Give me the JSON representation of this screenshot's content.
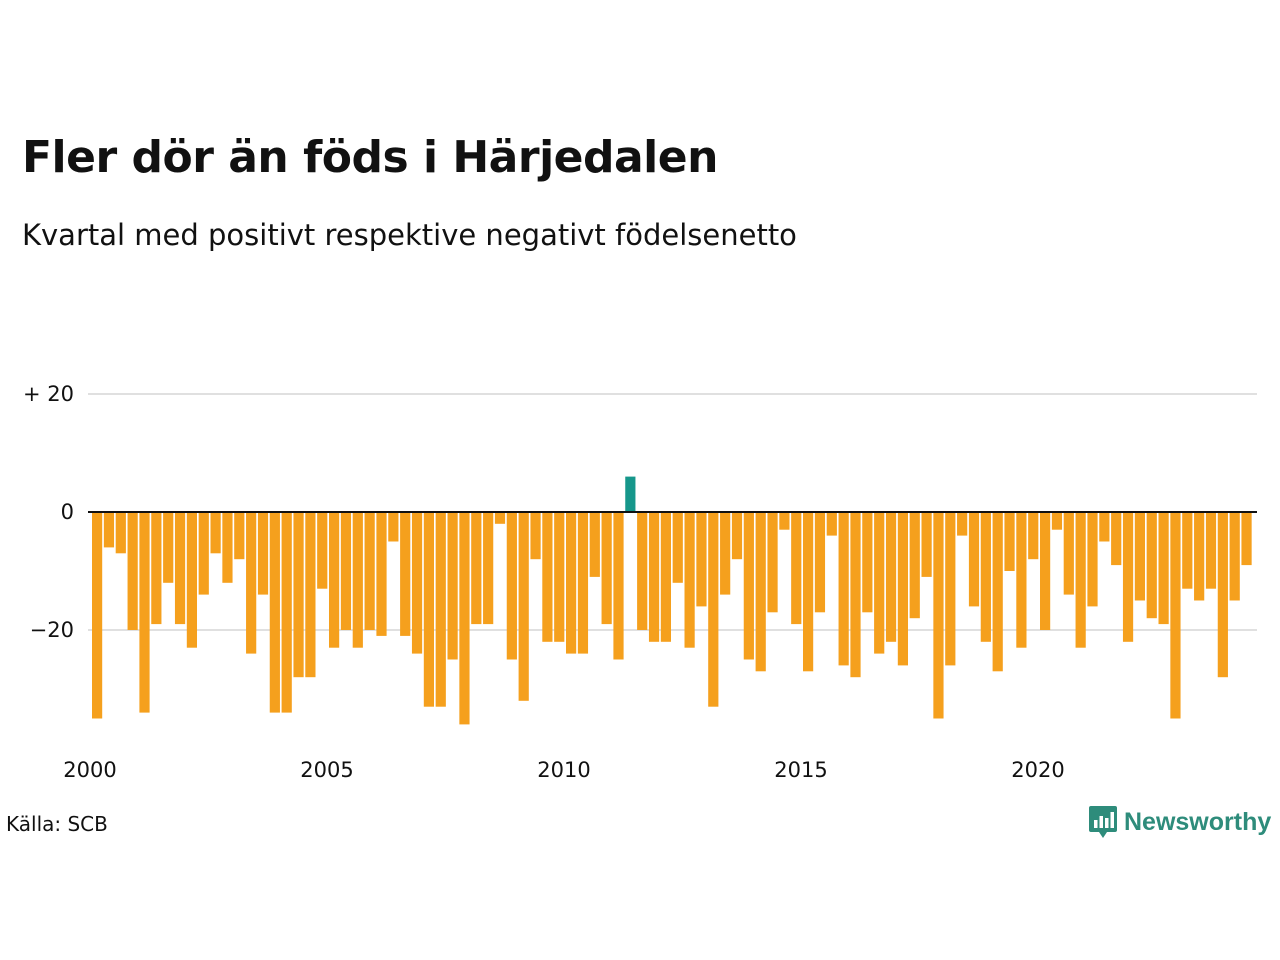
{
  "title": "Fler dör än föds i Härjedalen",
  "subtitle": "Kvartal med positivt respektive negativt födelsenetto",
  "source": "Källa: SCB",
  "brand": {
    "name": "Newsworthy",
    "icon": "newsworthy-logo-icon"
  },
  "colors": {
    "negative": "#f5a01d",
    "positive": "#16978b",
    "grid": "#e0e0e0",
    "zero_line": "#111111"
  },
  "chart_data": {
    "type": "bar",
    "title": "Fler dör än föds i Härjedalen",
    "subtitle": "Kvartal med positivt respektive negativt födelsenetto",
    "xlabel": "",
    "ylabel": "",
    "x_start": "2000 Q1",
    "x_ticks": [
      "2000",
      "2005",
      "2010",
      "2015",
      "2020"
    ],
    "y_ticks": [
      {
        "value": 20,
        "label": "+ 20"
      },
      {
        "value": 0,
        "label": "0"
      },
      {
        "value": -20,
        "label": "−20"
      }
    ],
    "ylim": [
      -38,
      23
    ],
    "grid": true,
    "legend": "none",
    "values": [
      -35,
      -6,
      -7,
      -20,
      -34,
      -19,
      -12,
      -19,
      -23,
      -14,
      -7,
      -12,
      -8,
      -24,
      -14,
      -34,
      -34,
      -28,
      -28,
      -13,
      -23,
      -20,
      -23,
      -20,
      -21,
      -5,
      -21,
      -24,
      -33,
      -33,
      -25,
      -36,
      -19,
      -19,
      -2,
      -25,
      -32,
      -8,
      -22,
      -22,
      -24,
      -24,
      -11,
      -19,
      -25,
      6,
      -20,
      -22,
      -22,
      -12,
      -23,
      -16,
      -33,
      -14,
      -8,
      -25,
      -27,
      -17,
      -3,
      -19,
      -27,
      -17,
      -4,
      -26,
      -28,
      -17,
      -24,
      -22,
      -26,
      -18,
      -11,
      -35,
      -26,
      -4,
      -16,
      -22,
      -27,
      -10,
      -23,
      -8,
      -20,
      -3,
      -14,
      -23,
      -16,
      -5,
      -9,
      -22,
      -15,
      -18,
      -19,
      -35,
      -13,
      -15,
      -13,
      -28,
      -15,
      -9
    ]
  }
}
